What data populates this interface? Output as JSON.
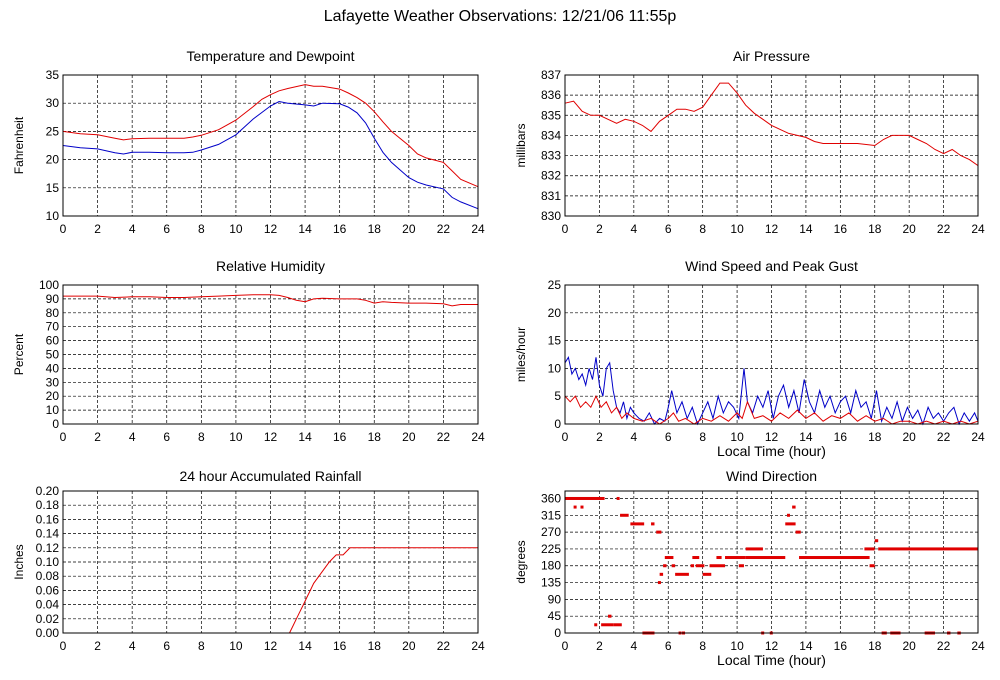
{
  "page": {
    "title": "Lafayette Weather Observations: 12/21/06 11:55p"
  },
  "colors": {
    "red": "#e00000",
    "blue": "#0000c8",
    "grid": "#000000",
    "frame": "#000000"
  },
  "chart_data": [
    {
      "id": "temperature",
      "type": "line",
      "title": "Temperature and Dewpoint",
      "xlabel": "",
      "ylabel": "Fahrenheit",
      "xlim": [
        0,
        24
      ],
      "ylim": [
        10,
        35
      ],
      "xticks": [
        0,
        2,
        4,
        6,
        8,
        10,
        12,
        14,
        16,
        18,
        20,
        22,
        24
      ],
      "yticks": [
        10,
        15,
        20,
        25,
        30,
        35
      ],
      "ytick_labels": [
        "10",
        "15",
        "20",
        "25",
        "30",
        "35"
      ],
      "grid": true,
      "series": [
        {
          "color": "#e00000",
          "x": [
            0,
            1,
            2,
            3,
            3.5,
            4,
            5,
            6,
            7,
            7.5,
            8,
            9,
            10,
            11,
            11.5,
            12,
            12.5,
            13,
            14,
            14.5,
            15,
            16,
            16.5,
            17,
            17.5,
            18,
            18.5,
            19,
            20,
            20.5,
            21,
            22,
            22.5,
            23,
            24
          ],
          "y": [
            25,
            24.6,
            24.4,
            23.8,
            23.5,
            23.7,
            23.8,
            23.8,
            23.8,
            24,
            24.3,
            25.3,
            27,
            29.4,
            30.7,
            31.5,
            32.2,
            32.6,
            33.3,
            33,
            33,
            32.5,
            31.8,
            31,
            30,
            28.5,
            26.7,
            25,
            22.5,
            21,
            20.3,
            19.5,
            18,
            16.5,
            15.2
          ]
        },
        {
          "color": "#0000c8",
          "x": [
            0,
            1,
            2,
            3,
            3.5,
            4,
            5,
            6,
            7,
            7.5,
            8,
            9,
            10,
            11,
            12,
            12.5,
            13,
            14,
            14.5,
            15,
            16,
            16.5,
            17,
            17.5,
            18,
            18.5,
            19,
            20,
            20.5,
            21,
            22,
            22.5,
            23,
            24
          ],
          "y": [
            22.5,
            22.1,
            21.9,
            21.2,
            21,
            21.3,
            21.3,
            21.2,
            21.2,
            21.3,
            21.7,
            22.7,
            24.4,
            27.2,
            29.5,
            30.3,
            30,
            29.7,
            29.5,
            30,
            29.9,
            29.3,
            28.3,
            26.5,
            23.8,
            21.3,
            19.5,
            16.8,
            16,
            15.5,
            14.8,
            13.3,
            12.5,
            11.3
          ]
        }
      ]
    },
    {
      "id": "pressure",
      "type": "line",
      "title": "Air Pressure",
      "xlabel": "",
      "ylabel": "millibars",
      "xlim": [
        0,
        24
      ],
      "ylim": [
        830,
        837
      ],
      "xticks": [
        0,
        2,
        4,
        6,
        8,
        10,
        12,
        14,
        16,
        18,
        20,
        22,
        24
      ],
      "yticks": [
        830,
        831,
        832,
        833,
        834,
        835,
        836,
        837
      ],
      "ytick_labels": [
        "830",
        "831",
        "832",
        "833",
        "834",
        "835",
        "836",
        "837"
      ],
      "grid": true,
      "series": [
        {
          "color": "#e00000",
          "x": [
            0,
            0.5,
            1,
            1.5,
            2,
            2.5,
            3,
            3.5,
            4,
            4.5,
            5,
            5.5,
            6,
            6.5,
            7,
            7.5,
            8,
            8.5,
            9,
            9.5,
            10,
            10.5,
            11,
            11.5,
            12,
            12.5,
            13,
            13.5,
            14,
            14.5,
            15,
            16,
            17,
            18,
            18.5,
            19,
            20,
            20.5,
            21,
            21.5,
            22,
            22.5,
            23,
            23.5,
            24
          ],
          "y": [
            835.6,
            835.7,
            835.2,
            835,
            835,
            834.8,
            834.6,
            834.8,
            834.7,
            834.5,
            834.2,
            834.7,
            835,
            835.3,
            835.3,
            835.2,
            835.4,
            836,
            836.6,
            836.6,
            836.1,
            835.5,
            835.1,
            834.8,
            834.5,
            834.3,
            834.1,
            834,
            833.9,
            833.7,
            833.6,
            833.6,
            833.6,
            833.5,
            833.8,
            834,
            834,
            833.8,
            833.6,
            833.3,
            833.1,
            833.3,
            833,
            832.8,
            832.5
          ]
        }
      ]
    },
    {
      "id": "humidity",
      "type": "line",
      "title": "Relative Humidity",
      "xlabel": "",
      "ylabel": "Percent",
      "xlim": [
        0,
        24
      ],
      "ylim": [
        0,
        100
      ],
      "xticks": [
        0,
        2,
        4,
        6,
        8,
        10,
        12,
        14,
        16,
        18,
        20,
        22,
        24
      ],
      "yticks": [
        0,
        10,
        20,
        30,
        40,
        50,
        60,
        70,
        80,
        90,
        100
      ],
      "ytick_labels": [
        "0",
        "10",
        "20",
        "30",
        "40",
        "50",
        "60",
        "70",
        "80",
        "90",
        "100"
      ],
      "grid": true,
      "series": [
        {
          "color": "#e00000",
          "x": [
            0,
            1,
            2,
            3,
            4,
            5,
            6,
            7,
            8,
            9,
            10,
            11,
            12,
            12.5,
            13,
            13.5,
            14,
            14.5,
            15,
            16,
            17,
            17.5,
            18,
            18.5,
            19,
            20,
            21,
            22,
            22.5,
            23,
            24
          ],
          "y": [
            92,
            92,
            92,
            91,
            91.5,
            91.5,
            91,
            91,
            91.5,
            92,
            92.5,
            93,
            93,
            92.5,
            91,
            89,
            88,
            90,
            90.5,
            90,
            90,
            89,
            87,
            88,
            87.5,
            87,
            87,
            86.5,
            85,
            86,
            86
          ]
        }
      ]
    },
    {
      "id": "wind-speed",
      "type": "line",
      "title": "Wind Speed and Peak Gust",
      "xlabel": "Local Time (hour)",
      "ylabel": "miles/hour",
      "xlim": [
        0,
        24
      ],
      "ylim": [
        0,
        25
      ],
      "xticks": [
        0,
        2,
        4,
        6,
        8,
        10,
        12,
        14,
        16,
        18,
        20,
        22,
        24
      ],
      "yticks": [
        0,
        5,
        10,
        15,
        20,
        25
      ],
      "ytick_labels": [
        "0",
        "5",
        "10",
        "15",
        "20",
        "25"
      ],
      "grid": true,
      "series": [
        {
          "color": "#0000c8",
          "x": [
            0,
            0.2,
            0.4,
            0.6,
            0.8,
            1,
            1.2,
            1.4,
            1.6,
            1.8,
            2,
            2.2,
            2.4,
            2.6,
            2.8,
            3,
            3.2,
            3.4,
            3.6,
            3.8,
            4,
            4.3,
            4.6,
            4.9,
            5.2,
            5.5,
            5.8,
            6,
            6.2,
            6.5,
            6.8,
            7.1,
            7.4,
            7.7,
            8,
            8.3,
            8.6,
            8.9,
            9.2,
            9.5,
            9.8,
            10.1,
            10.4,
            10.6,
            10.9,
            11.2,
            11.5,
            11.8,
            12.1,
            12.4,
            12.7,
            13,
            13.3,
            13.6,
            13.9,
            14.2,
            14.5,
            14.8,
            15.1,
            15.4,
            15.7,
            16,
            16.3,
            16.6,
            16.9,
            17.2,
            17.5,
            17.8,
            18.1,
            18.4,
            18.7,
            19,
            19.3,
            19.6,
            19.9,
            20.2,
            20.5,
            20.8,
            21.1,
            21.4,
            21.7,
            22,
            22.3,
            22.6,
            22.9,
            23.2,
            23.5,
            23.8,
            24
          ],
          "y": [
            11,
            12,
            9,
            10,
            8,
            9,
            7,
            10,
            8,
            12,
            7,
            5,
            10,
            11,
            6,
            3,
            2,
            4,
            1,
            3,
            2,
            1,
            0.5,
            2,
            0,
            1,
            0.5,
            3,
            6,
            2,
            4,
            1,
            3,
            0,
            2,
            4,
            1,
            5,
            2,
            4,
            3,
            1,
            10,
            4,
            2,
            5,
            3,
            6,
            1,
            5,
            7,
            3,
            6,
            2,
            8,
            4,
            2,
            6,
            3,
            5,
            2,
            4,
            5,
            2,
            6,
            3,
            4,
            1,
            6,
            0.5,
            3,
            1,
            4,
            0.5,
            3,
            1,
            2.5,
            0,
            3,
            1,
            2,
            0.5,
            2,
            3,
            0,
            2,
            0.5,
            2,
            0.5
          ]
        },
        {
          "color": "#e00000",
          "x": [
            0,
            0.3,
            0.6,
            0.9,
            1.2,
            1.5,
            1.8,
            2.1,
            2.4,
            2.7,
            3,
            3.3,
            3.6,
            4,
            4.5,
            5,
            5.5,
            6,
            6.3,
            6.6,
            7,
            7.5,
            8,
            8.5,
            9,
            9.5,
            10,
            10.3,
            10.6,
            11,
            11.5,
            12,
            12.5,
            13,
            13.5,
            14,
            14.5,
            15,
            15.5,
            16,
            16.5,
            17,
            17.5,
            18,
            18.5,
            19,
            19.5,
            20,
            20.5,
            21,
            21.5,
            22,
            22.5,
            23,
            23.5,
            24
          ],
          "y": [
            5,
            4,
            5,
            3,
            4,
            3,
            5,
            3,
            4,
            2,
            3,
            1,
            2,
            1,
            0.5,
            1,
            0,
            1,
            2,
            0.5,
            1,
            0,
            1,
            0.5,
            1.5,
            0.5,
            2,
            1,
            4,
            1,
            1.5,
            0.5,
            2,
            1,
            2.5,
            1,
            2,
            0.5,
            1.5,
            1,
            2,
            0.5,
            1.5,
            0.5,
            1,
            0,
            0.5,
            0.5,
            0,
            0.5,
            0,
            0.5,
            0,
            0.5,
            0,
            0.5
          ]
        }
      ]
    },
    {
      "id": "rainfall",
      "type": "line",
      "title": "24 hour Accumulated Rainfall",
      "xlabel": "",
      "ylabel": "Inches",
      "xlim": [
        0,
        24
      ],
      "ylim": [
        0,
        0.2
      ],
      "xticks": [
        0,
        2,
        4,
        6,
        8,
        10,
        12,
        14,
        16,
        18,
        20,
        22,
        24
      ],
      "yticks": [
        0,
        0.02,
        0.04,
        0.06,
        0.08,
        0.1,
        0.12,
        0.14,
        0.16,
        0.18,
        0.2
      ],
      "ytick_labels": [
        "0.00",
        "0.02",
        "0.04",
        "0.06",
        "0.08",
        "0.10",
        "0.12",
        "0.14",
        "0.16",
        "0.18",
        "0.20"
      ],
      "grid": true,
      "series": [
        {
          "color": "#e00000",
          "x": [
            0,
            13.1,
            13.3,
            13.5,
            13.7,
            13.9,
            14.1,
            14.3,
            14.5,
            14.8,
            15.1,
            15.4,
            15.8,
            16.2,
            16.6,
            24
          ],
          "y": [
            0,
            0,
            0.01,
            0.02,
            0.03,
            0.04,
            0.05,
            0.06,
            0.07,
            0.08,
            0.09,
            0.1,
            0.11,
            0.11,
            0.12,
            0.12
          ]
        }
      ]
    },
    {
      "id": "wind-direction",
      "type": "scatter",
      "title": "Wind Direction",
      "xlabel": "Local Time (hour)",
      "ylabel": "degrees",
      "xlim": [
        0,
        24
      ],
      "ylim": [
        0,
        380
      ],
      "xticks": [
        0,
        2,
        4,
        6,
        8,
        10,
        12,
        14,
        16,
        18,
        20,
        22,
        24
      ],
      "yticks": [
        0,
        45,
        90,
        135,
        180,
        225,
        270,
        315,
        360
      ],
      "ytick_labels": [
        "0",
        "45",
        "90",
        "135",
        "180",
        "225",
        "270",
        "315",
        "360"
      ],
      "grid": true,
      "series": [
        {
          "color": "#e00000",
          "segments": [
            [
              0,
              2.3,
              360
            ],
            [
              0.5,
              0.6,
              337
            ],
            [
              0.9,
              1.0,
              337
            ],
            [
              1.7,
              1.8,
              22
            ],
            [
              2.1,
              2.8,
              22
            ],
            [
              2.5,
              2.7,
              45
            ],
            [
              2.8,
              3.3,
              22
            ],
            [
              3.0,
              3.1,
              360
            ],
            [
              3.2,
              3.7,
              315
            ],
            [
              3.8,
              4.6,
              292
            ],
            [
              4.5,
              5.2,
              0
            ],
            [
              5.0,
              5.2,
              292
            ],
            [
              5.3,
              5.6,
              270
            ],
            [
              5.4,
              5.5,
              135
            ],
            [
              5.5,
              5.7,
              157
            ],
            [
              5.7,
              5.9,
              180
            ],
            [
              5.8,
              6.3,
              202
            ],
            [
              6.2,
              6.4,
              180
            ],
            [
              6.4,
              7.2,
              157
            ],
            [
              6.6,
              6.7,
              0
            ],
            [
              6.8,
              6.9,
              0
            ],
            [
              7.3,
              7.5,
              180
            ],
            [
              7.4,
              7.8,
              202
            ],
            [
              7.6,
              8.1,
              180
            ],
            [
              8.0,
              8.5,
              157
            ],
            [
              8.4,
              9.3,
              180
            ],
            [
              8.8,
              9.1,
              202
            ],
            [
              9.3,
              10.5,
              202
            ],
            [
              10.1,
              10.4,
              180
            ],
            [
              10.5,
              11.5,
              225
            ],
            [
              10.5,
              12.8,
              202
            ],
            [
              11.4,
              11.5,
              0
            ],
            [
              11.9,
              12.0,
              0
            ],
            [
              12.8,
              13.4,
              292
            ],
            [
              12.9,
              13.0,
              315
            ],
            [
              13.2,
              13.4,
              337
            ],
            [
              13.4,
              13.7,
              270
            ],
            [
              13.6,
              17.7,
              202
            ],
            [
              16.7,
              17.6,
              202
            ],
            [
              17.4,
              18.0,
              225
            ],
            [
              17.7,
              18.0,
              180
            ],
            [
              18.0,
              18.2,
              247
            ],
            [
              18.2,
              24,
              225
            ],
            [
              18.4,
              18.7,
              0
            ],
            [
              18.9,
              19.5,
              0
            ],
            [
              20.9,
              21.5,
              0
            ],
            [
              22.2,
              22.4,
              0
            ],
            [
              22.8,
              23.0,
              0
            ]
          ]
        }
      ]
    }
  ]
}
